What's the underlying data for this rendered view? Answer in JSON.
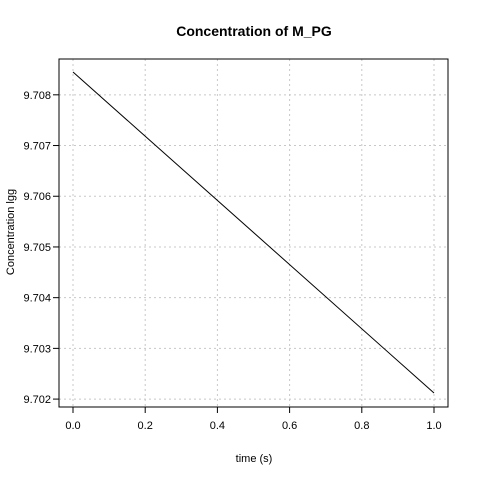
{
  "chart_data": {
    "type": "line",
    "title": "Concentration of M_PG",
    "xlabel": "time (s)",
    "ylabel": "Concentration lgg",
    "xlim": [
      0.0,
      1.0
    ],
    "ylim": [
      9.70212,
      9.70845
    ],
    "xticks": [
      0.0,
      0.2,
      0.4,
      0.6,
      0.8,
      1.0
    ],
    "xtick_labels": [
      "0.0",
      "0.2",
      "0.4",
      "0.6",
      "0.8",
      "1.0"
    ],
    "yticks": [
      9.702,
      9.703,
      9.704,
      9.705,
      9.706,
      9.707,
      9.708
    ],
    "ytick_labels": [
      "9.702",
      "9.703",
      "9.704",
      "9.705",
      "9.706",
      "9.707",
      "9.708"
    ],
    "grid": true,
    "series": [
      {
        "color": "#000000",
        "x": [
          0.0,
          1.0
        ],
        "y": [
          9.70845,
          9.70212
        ]
      }
    ]
  }
}
